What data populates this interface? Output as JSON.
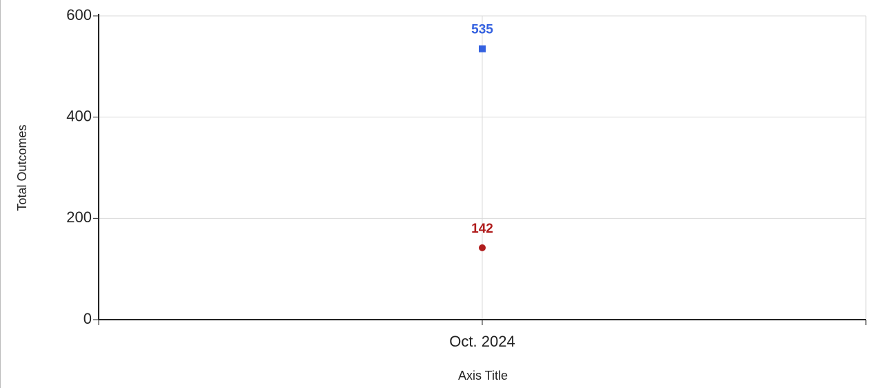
{
  "chart_data": {
    "type": "line",
    "categories": [
      "Oct. 2024"
    ],
    "series": [
      {
        "color": "#3461e0",
        "marker": "square",
        "values": [
          535
        ]
      },
      {
        "color": "#b01c1c",
        "marker": "circle",
        "values": [
          142
        ]
      }
    ],
    "xlabel": "Axis Title",
    "ylabel": "Total Outcomes",
    "ylim": [
      0,
      600
    ],
    "yticks": [
      0,
      200,
      400,
      600
    ],
    "grid": true
  }
}
